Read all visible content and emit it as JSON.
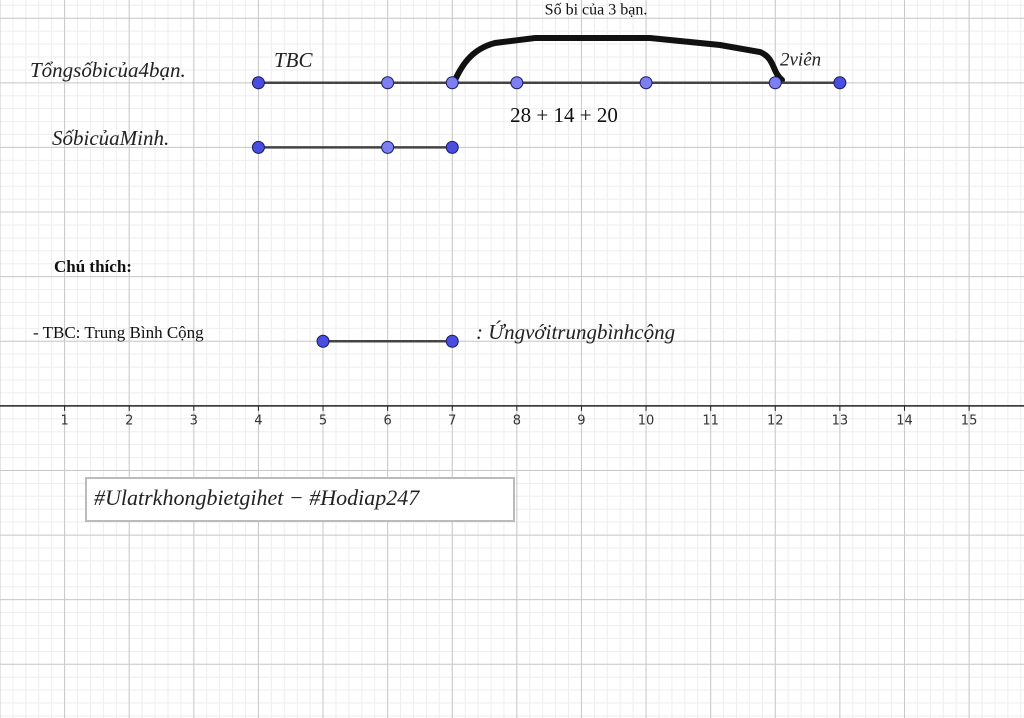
{
  "labels": {
    "total_friends": "Tổngsốbicủa4bạn.",
    "tbc": "TBC",
    "three_friends": "Số bi của 3 bạn.",
    "two_marbles": "2viên",
    "sum": "28 + 14 + 20",
    "minh": "SốbicủaMinh.",
    "legend_title": "Chú thích:",
    "legend_tbc": "- TBC: Trung Bình Cộng",
    "legend_segment": ": Ứngvớitrungbìnhcộng",
    "hashtag": "#Ulatrkhongbietgihet − #Hodiap247"
  },
  "axis": {
    "xlim": [
      0,
      15.85
    ],
    "ylim": [
      -4.83,
      6.28
    ],
    "xticks": [
      1,
      2,
      3,
      4,
      5,
      6,
      7,
      8,
      9,
      10,
      11,
      12,
      13,
      14,
      15
    ]
  },
  "segments": [
    {
      "y": 5,
      "x": [
        4,
        6,
        7,
        8,
        10,
        12,
        13
      ]
    },
    {
      "y": 4,
      "x": [
        4,
        6,
        7
      ]
    },
    {
      "y": 1,
      "x": [
        5,
        7
      ]
    }
  ]
}
